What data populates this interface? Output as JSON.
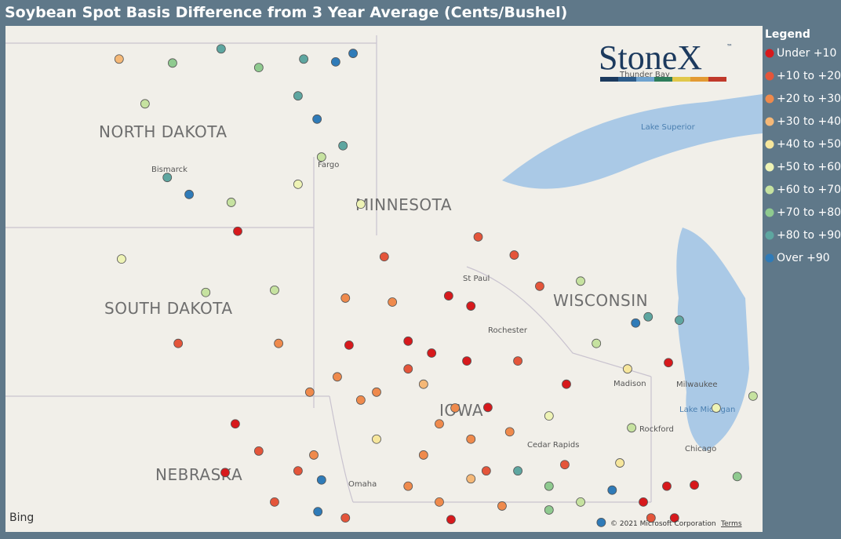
{
  "header": {
    "title": "Soybean Spot Basis Difference from 3 Year Average (Cents/Bushel)"
  },
  "logo": {
    "text": "StoneX",
    "mark": "™"
  },
  "legend": {
    "title": "Legend",
    "items": [
      {
        "name": "Under +10",
        "color": "#d7191c",
        "points": [
          [
            -98.59,
            45.83
          ],
          [
            -93.38,
            44.69
          ],
          [
            -92.83,
            44.51
          ],
          [
            -95.84,
            43.82
          ],
          [
            -94.38,
            43.89
          ],
          [
            -93.8,
            43.68
          ],
          [
            -92.93,
            43.54
          ],
          [
            -92.41,
            42.72
          ],
          [
            -87.95,
            43.51
          ],
          [
            -90.47,
            43.13
          ],
          [
            -98.65,
            42.43
          ],
          [
            -98.9,
            41.57
          ],
          [
            -93.32,
            40.74
          ],
          [
            -88.57,
            41.05
          ],
          [
            -87.99,
            41.33
          ],
          [
            -87.31,
            41.35
          ],
          [
            -87.8,
            40.77
          ]
        ]
      },
      {
        "name": "+10 to +20",
        "color": "#e4553a",
        "points": [
          [
            -100.06,
            43.85
          ],
          [
            -94.97,
            45.38
          ],
          [
            -92.65,
            45.73
          ],
          [
            -91.76,
            45.41
          ],
          [
            -91.67,
            43.54
          ],
          [
            -91.13,
            44.86
          ],
          [
            -98.07,
            41.95
          ],
          [
            -97.1,
            41.6
          ],
          [
            -97.68,
            41.05
          ],
          [
            -95.93,
            40.77
          ],
          [
            -90.51,
            41.71
          ],
          [
            -88.38,
            40.77
          ],
          [
            -94.38,
            43.4
          ],
          [
            -92.45,
            41.6
          ]
        ]
      },
      {
        "name": "+20 to +30",
        "color": "#ef8a4c",
        "points": [
          [
            -94.77,
            44.58
          ],
          [
            -95.93,
            44.65
          ],
          [
            -96.13,
            43.26
          ],
          [
            -95.16,
            42.99
          ],
          [
            -93.22,
            42.71
          ],
          [
            -91.87,
            42.29
          ],
          [
            -92.83,
            42.16
          ],
          [
            -94.0,
            41.88
          ],
          [
            -96.71,
            41.88
          ],
          [
            -94.38,
            41.33
          ],
          [
            -97.58,
            43.85
          ],
          [
            -96.81,
            42.99
          ],
          [
            -95.55,
            42.85
          ],
          [
            -93.61,
            42.43
          ],
          [
            -93.61,
            41.05
          ],
          [
            -92.06,
            40.98
          ]
        ]
      },
      {
        "name": "+30 to +40",
        "color": "#f5b877",
        "points": [
          [
            -101.52,
            48.87
          ],
          [
            -94.0,
            43.13
          ],
          [
            -92.83,
            41.46
          ]
        ]
      },
      {
        "name": "+40 to +50",
        "color": "#f6e69c",
        "points": [
          [
            -88.96,
            43.4
          ],
          [
            -95.16,
            42.16
          ],
          [
            -89.15,
            41.74
          ]
        ]
      },
      {
        "name": "+50 to +60",
        "color": "#eef3b5",
        "points": [
          [
            -97.1,
            46.66
          ],
          [
            -101.46,
            45.34
          ],
          [
            -95.55,
            46.31
          ],
          [
            -90.9,
            42.57
          ],
          [
            -86.77,
            42.71
          ]
        ]
      },
      {
        "name": "+60 to +70",
        "color": "#c6e2a0",
        "points": [
          [
            -100.88,
            48.08
          ],
          [
            -98.75,
            46.34
          ],
          [
            -96.52,
            47.14
          ],
          [
            -99.38,
            44.75
          ],
          [
            -97.68,
            44.79
          ],
          [
            -90.12,
            44.95
          ],
          [
            -89.73,
            43.85
          ],
          [
            -85.86,
            42.92
          ],
          [
            -90.12,
            41.05
          ],
          [
            -88.86,
            42.36
          ]
        ]
      },
      {
        "name": "+70 to +80",
        "color": "#8fca8f",
        "points": [
          [
            -100.2,
            48.8
          ],
          [
            -98.07,
            48.72
          ],
          [
            -90.9,
            41.33
          ],
          [
            -86.25,
            41.5
          ],
          [
            -90.9,
            40.91
          ]
        ]
      },
      {
        "name": "+80 to +90",
        "color": "#5ea6a0",
        "points": [
          [
            -99.0,
            49.05
          ],
          [
            -96.96,
            48.87
          ],
          [
            -97.1,
            48.22
          ],
          [
            -95.99,
            47.34
          ],
          [
            -100.33,
            46.78
          ],
          [
            -88.45,
            44.32
          ],
          [
            -87.68,
            44.26
          ],
          [
            -91.67,
            41.6
          ]
        ]
      },
      {
        "name": "Over +90",
        "color": "#2f7bb8",
        "points": [
          [
            -96.17,
            48.82
          ],
          [
            -95.74,
            48.97
          ],
          [
            -96.63,
            47.81
          ],
          [
            -99.79,
            46.48
          ],
          [
            -88.76,
            44.21
          ],
          [
            -96.52,
            41.44
          ],
          [
            -96.61,
            40.88
          ],
          [
            -89.34,
            41.26
          ],
          [
            -89.61,
            40.69
          ]
        ]
      }
    ]
  },
  "map": {
    "states": [
      "NORTH DAKOTA",
      "MINNESOTA",
      "SOUTH DAKOTA",
      "WISCONSIN",
      "NEBRASKA",
      "IOWA"
    ],
    "cities": [
      "Bismarck",
      "Fargo",
      "St Paul",
      "Rochester",
      "Madison",
      "Milwaukee",
      "Rockford",
      "Chicago",
      "Cedar Rapids",
      "Omaha",
      "Thunder Bay"
    ],
    "water": [
      "Lake Superior",
      "Lake Michigan"
    ],
    "provider": "Bing",
    "copyright": "© 2021 Microsoft Corporation",
    "terms": "Terms"
  }
}
